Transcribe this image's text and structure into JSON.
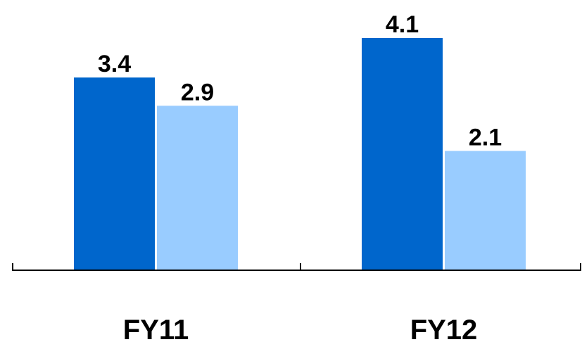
{
  "chart_data": {
    "type": "bar",
    "categories": [
      "FY11",
      "FY12"
    ],
    "series": [
      {
        "values": [
          3.4,
          4.1
        ],
        "color": "#0066CC"
      },
      {
        "values": [
          2.9,
          2.1
        ],
        "color": "#99CCFF"
      }
    ],
    "data_labels": true,
    "legend": "none",
    "grid": false,
    "ylim": [
      0,
      4.1
    ]
  }
}
